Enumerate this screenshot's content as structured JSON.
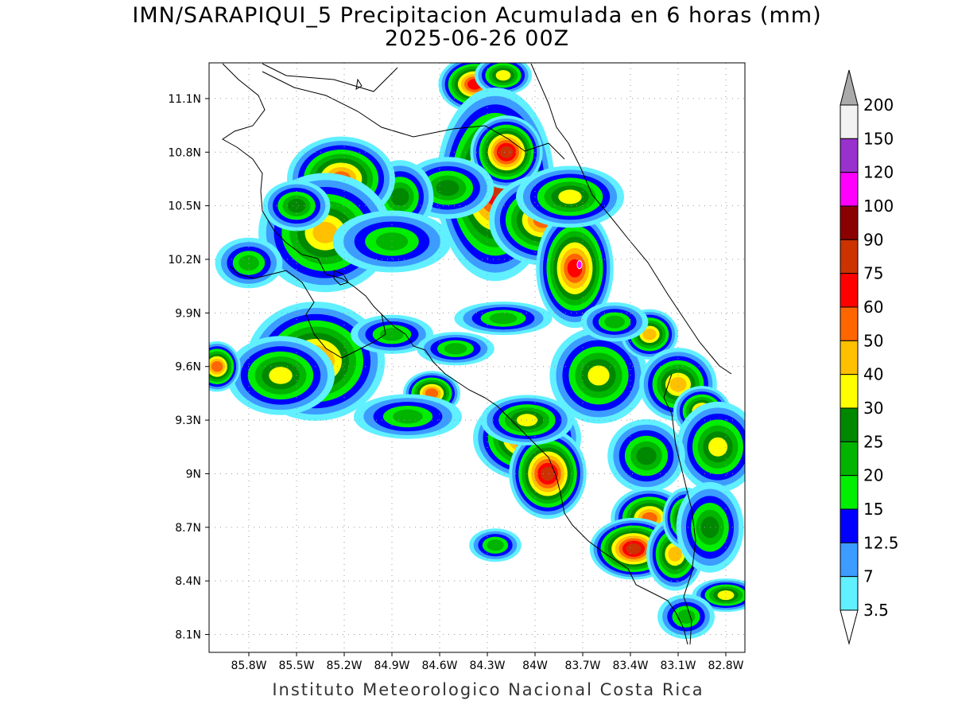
{
  "title": "IMN/SARAPIQUI_5 Precipitacion Acumulada en 6 horas (mm)",
  "subtitle": "2025-06-26 00Z",
  "footer": "Instituto Meteorologico Nacional Costa Rica",
  "map": {
    "lon_range": [
      -86.05,
      -82.68
    ],
    "lat_range": [
      8.0,
      11.3
    ],
    "lat_ticks": [
      "11.1N",
      "10.8N",
      "10.5N",
      "10.2N",
      "9.9N",
      "9.6N",
      "9.3N",
      "9N",
      "8.7N",
      "8.4N",
      "8.1N"
    ],
    "lon_ticks": [
      "85.8W",
      "85.5W",
      "85.2W",
      "84.9W",
      "84.6W",
      "84.3W",
      "84W",
      "83.7W",
      "83.4W",
      "83.1W",
      "82.8W"
    ],
    "lat_values": [
      11.1,
      10.8,
      10.5,
      10.2,
      9.9,
      9.6,
      9.3,
      9.0,
      8.7,
      8.4,
      8.1
    ],
    "lon_values": [
      -85.8,
      -85.5,
      -85.2,
      -84.9,
      -84.6,
      -84.3,
      -84.0,
      -83.7,
      -83.4,
      -83.1,
      -82.8
    ],
    "grid": true,
    "variable": "6-hour accumulated precipitation",
    "max_marker": {
      "lon": -83.72,
      "lat": 10.17,
      "category": "magenta"
    }
  },
  "legend": {
    "position": "right",
    "labels": [
      "200",
      "150",
      "120",
      "100",
      "90",
      "75",
      "60",
      "50",
      "40",
      "30",
      "25",
      "20",
      "15",
      "12.5",
      "7",
      "3.5"
    ],
    "colors": [
      "#f2f2f2",
      "#9932cc",
      "#ff00ff",
      "#8b0000",
      "#cc3300",
      "#ff0000",
      "#ff6600",
      "#ffc000",
      "#ffff00",
      "#008800",
      "#00b400",
      "#00ee00",
      "#0000ff",
      "#3c9cff",
      "#60f0ff"
    ],
    "top_arrow_color": "#aaaaaa",
    "bottom_arrow_color": "#ffffff"
  },
  "rain_cells": [
    {
      "lon": -84.38,
      "lat": 11.18,
      "rx": 0.13,
      "ry": 0.09,
      "peak": 6
    },
    {
      "lon": -84.2,
      "lat": 11.23,
      "rx": 0.1,
      "ry": 0.06,
      "peak": 3
    },
    {
      "lon": -84.25,
      "lat": 10.62,
      "rx": 0.22,
      "ry": 0.33,
      "peak": 7
    },
    {
      "lon": -84.18,
      "lat": 10.8,
      "rx": 0.13,
      "ry": 0.12,
      "peak": 7
    },
    {
      "lon": -83.95,
      "lat": 10.42,
      "rx": 0.2,
      "ry": 0.15,
      "peak": 5
    },
    {
      "lon": -83.75,
      "lat": 10.15,
      "rx": 0.14,
      "ry": 0.2,
      "peak": 6
    },
    {
      "lon": -83.78,
      "lat": 10.55,
      "rx": 0.2,
      "ry": 0.1,
      "peak": 3
    },
    {
      "lon": -84.55,
      "lat": 10.6,
      "rx": 0.17,
      "ry": 0.1,
      "peak": 2
    },
    {
      "lon": -84.85,
      "lat": 10.55,
      "rx": 0.12,
      "ry": 0.12,
      "peak": 2
    },
    {
      "lon": -85.22,
      "lat": 10.65,
      "rx": 0.2,
      "ry": 0.14,
      "peak": 5
    },
    {
      "lon": -85.32,
      "lat": 10.35,
      "rx": 0.25,
      "ry": 0.2,
      "peak": 4
    },
    {
      "lon": -85.5,
      "lat": 10.5,
      "rx": 0.12,
      "ry": 0.08,
      "peak": 2
    },
    {
      "lon": -85.8,
      "lat": 10.18,
      "rx": 0.12,
      "ry": 0.08,
      "peak": 1
    },
    {
      "lon": -84.9,
      "lat": 10.3,
      "rx": 0.22,
      "ry": 0.1,
      "peak": 1
    },
    {
      "lon": -85.38,
      "lat": 9.63,
      "rx": 0.26,
      "ry": 0.2,
      "peak": 5
    },
    {
      "lon": -85.6,
      "lat": 9.55,
      "rx": 0.2,
      "ry": 0.13,
      "peak": 3
    },
    {
      "lon": -86.0,
      "lat": 9.6,
      "rx": 0.08,
      "ry": 0.08,
      "peak": 5
    },
    {
      "lon": -84.65,
      "lat": 9.45,
      "rx": 0.1,
      "ry": 0.07,
      "peak": 5
    },
    {
      "lon": -84.9,
      "lat": 9.78,
      "rx": 0.15,
      "ry": 0.06,
      "peak": 1
    },
    {
      "lon": -84.5,
      "lat": 9.7,
      "rx": 0.14,
      "ry": 0.05,
      "peak": 1
    },
    {
      "lon": -84.05,
      "lat": 9.2,
      "rx": 0.2,
      "ry": 0.14,
      "peak": 6
    },
    {
      "lon": -83.92,
      "lat": 9.0,
      "rx": 0.14,
      "ry": 0.15,
      "peak": 7
    },
    {
      "lon": -84.05,
      "lat": 9.3,
      "rx": 0.17,
      "ry": 0.08,
      "peak": 3
    },
    {
      "lon": -83.6,
      "lat": 9.55,
      "rx": 0.18,
      "ry": 0.16,
      "peak": 3
    },
    {
      "lon": -83.28,
      "lat": 9.78,
      "rx": 0.1,
      "ry": 0.08,
      "peak": 4
    },
    {
      "lon": -83.1,
      "lat": 9.5,
      "rx": 0.14,
      "ry": 0.12,
      "peak": 4
    },
    {
      "lon": -82.95,
      "lat": 9.35,
      "rx": 0.1,
      "ry": 0.08,
      "peak": 4
    },
    {
      "lon": -82.85,
      "lat": 9.15,
      "rx": 0.15,
      "ry": 0.15,
      "peak": 3
    },
    {
      "lon": -83.3,
      "lat": 9.1,
      "rx": 0.14,
      "ry": 0.12,
      "peak": 2
    },
    {
      "lon": -83.28,
      "lat": 8.75,
      "rx": 0.14,
      "ry": 0.1,
      "peak": 5
    },
    {
      "lon": -83.38,
      "lat": 8.58,
      "rx": 0.16,
      "ry": 0.1,
      "peak": 7
    },
    {
      "lon": -83.12,
      "lat": 8.55,
      "rx": 0.1,
      "ry": 0.12,
      "peak": 4
    },
    {
      "lon": -83.05,
      "lat": 8.75,
      "rx": 0.08,
      "ry": 0.1,
      "peak": 4
    },
    {
      "lon": -82.9,
      "lat": 8.7,
      "rx": 0.12,
      "ry": 0.15,
      "peak": 2
    },
    {
      "lon": -82.8,
      "lat": 8.32,
      "rx": 0.12,
      "ry": 0.05,
      "peak": 3
    },
    {
      "lon": -83.05,
      "lat": 8.2,
      "rx": 0.1,
      "ry": 0.07,
      "peak": 1
    },
    {
      "lon": -84.25,
      "lat": 8.6,
      "rx": 0.09,
      "ry": 0.05,
      "peak": 1
    },
    {
      "lon": -84.8,
      "lat": 9.32,
      "rx": 0.2,
      "ry": 0.07,
      "peak": 1
    },
    {
      "lon": -83.5,
      "lat": 9.85,
      "rx": 0.12,
      "ry": 0.06,
      "peak": 1
    },
    {
      "lon": -84.2,
      "lat": 9.87,
      "rx": 0.18,
      "ry": 0.05,
      "peak": 1
    }
  ]
}
